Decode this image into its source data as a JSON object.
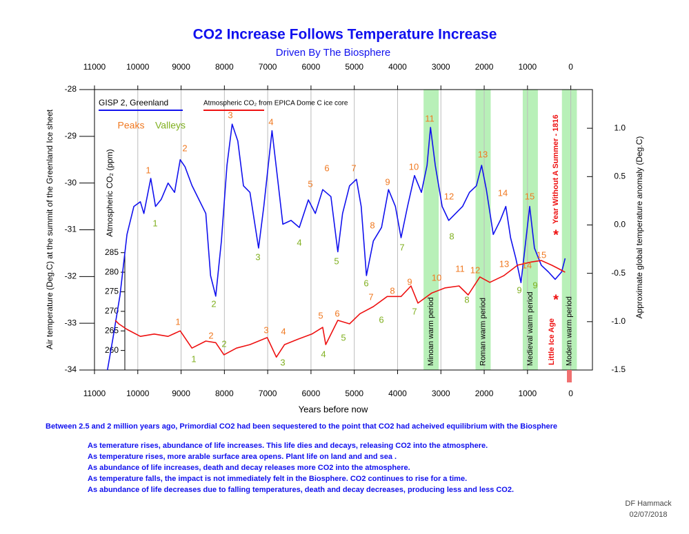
{
  "chart_data": {
    "type": "line",
    "title": "CO2 Increase Follows Temperature Increase",
    "subtitle": "Driven By The Biosphere",
    "xlabel": "Years before now",
    "ylabel": "Air temperature (Deg.C) at the summit of the Greenland Ice sheet",
    "y2label": "Approximate global temperature anomaly (Deg.C)",
    "y3label": "Atmospheric CO₂ (ppm)",
    "xlim": [
      11000,
      -500
    ],
    "xticks": [
      11000,
      10000,
      9000,
      8000,
      7000,
      6000,
      5000,
      4000,
      3000,
      2000,
      1000,
      0
    ],
    "ylim": [
      -34,
      -28
    ],
    "yticks": [
      -28,
      -29,
      -30,
      -31,
      -32,
      -33,
      -34
    ],
    "y2lim": [
      -1.5,
      1.4
    ],
    "y2ticks": [
      {
        "value": 1,
        "label": "1.0"
      },
      0.5,
      {
        "value": 0,
        "label": "0.0"
      },
      -0.5,
      {
        "value": -1,
        "label": "-1.0"
      },
      -1.5
    ],
    "y3lim": [
      255,
      326.7
    ],
    "y3ticks": [
      285,
      280,
      275,
      270,
      265,
      260
    ],
    "grid": true,
    "series": [
      {
        "name": "GISP 2, Greenland",
        "color": "#1010ee",
        "x": [
          10700,
          10570,
          10410,
          10250,
          10090,
          9940,
          9860,
          9700,
          9590,
          9460,
          9300,
          9150,
          9020,
          8910,
          8750,
          8590,
          8430,
          8320,
          8200,
          8070,
          7940,
          7820,
          7690,
          7560,
          7410,
          7210,
          7090,
          6900,
          6770,
          6650,
          6460,
          6270,
          6060,
          5900,
          5730,
          5540,
          5380,
          5270,
          5110,
          4950,
          4840,
          4720,
          4560,
          4370,
          4210,
          4050,
          3920,
          3770,
          3610,
          3450,
          3320,
          3240,
          3130,
          2970,
          2820,
          2660,
          2500,
          2340,
          2180,
          2060,
          1950,
          1790,
          1630,
          1500,
          1390,
          1270,
          1150,
          1040,
          950,
          840,
          680,
          520,
          360,
          210,
          130
        ],
        "values": [
          -34.0,
          -33.3,
          -32.4,
          -31.1,
          -30.5,
          -30.4,
          -30.65,
          -29.9,
          -30.5,
          -30.35,
          -30.0,
          -30.2,
          -29.5,
          -29.65,
          -30.05,
          -30.35,
          -30.65,
          -31.98,
          -32.42,
          -31.24,
          -29.62,
          -28.74,
          -29.1,
          -30.06,
          -30.2,
          -31.39,
          -30.5,
          -28.88,
          -29.92,
          -30.88,
          -30.8,
          -30.95,
          -30.36,
          -30.65,
          -30.14,
          -30.29,
          -31.47,
          -30.65,
          -30.06,
          -29.92,
          -30.5,
          -31.98,
          -31.24,
          -30.95,
          -30.14,
          -30.5,
          -31.17,
          -30.5,
          -29.84,
          -30.2,
          -29.62,
          -28.81,
          -29.62,
          -30.5,
          -30.8,
          -30.65,
          -30.5,
          -30.2,
          -30.06,
          -29.62,
          -30.14,
          -31.1,
          -30.8,
          -30.5,
          -31.17,
          -31.61,
          -32.13,
          -31.24,
          -30.5,
          -31.39,
          -31.76,
          -31.9,
          -32.06,
          -31.9,
          -31.61
        ]
      },
      {
        "name": "Atmospheric CO₂ from EPICA Dome C ice core",
        "color": "#ee1010",
        "axis": "y3",
        "x": [
          10520,
          10440,
          10250,
          9940,
          9620,
          9300,
          9020,
          8750,
          8430,
          8200,
          8010,
          7720,
          7410,
          7010,
          6800,
          6610,
          6300,
          5980,
          5730,
          5660,
          5380,
          5110,
          4870,
          4560,
          4240,
          3920,
          3690,
          3530,
          3210,
          2900,
          2580,
          2370,
          2100,
          1870,
          1550,
          1230,
          920,
          680,
          440,
          280,
          130
        ],
        "values": [
          267.7,
          266.8,
          265.4,
          263.6,
          264.2,
          263.6,
          265.0,
          260.6,
          262.4,
          262.0,
          258.9,
          260.6,
          261.5,
          263.3,
          258.3,
          261.5,
          262.9,
          264.2,
          265.9,
          261.5,
          267.7,
          266.8,
          269.4,
          271.2,
          273.8,
          273.8,
          276.5,
          272.1,
          274.7,
          276.0,
          276.5,
          274.2,
          278.8,
          277.4,
          279.1,
          281.8,
          282.6,
          283.0,
          281.8,
          280.9,
          280.0
        ]
      }
    ],
    "peaks_label": "Peaks",
    "valleys_label": "Valleys",
    "peak_color": "#f07820",
    "valley_color": "#80b020",
    "annotations": {
      "temperature_peaks": [
        "1",
        "2",
        "3",
        "4",
        "5",
        "6",
        "7",
        "8",
        "9",
        "10",
        "11",
        "12",
        "13",
        "14",
        "15"
      ],
      "temperature_valleys": [
        "1",
        "2",
        "3",
        "4",
        "5",
        "6",
        "7",
        "8",
        "9"
      ],
      "co2_peaks": [
        "1",
        "2",
        "3",
        "4",
        "5",
        "6",
        "7",
        "8",
        "9",
        "10",
        "11",
        "12",
        "13",
        "14",
        "15"
      ],
      "co2_valleys": [
        "1",
        "2",
        "3",
        "4",
        "5",
        "6",
        "7",
        "8",
        "9"
      ]
    },
    "period_color": "#b8f0b8",
    "periods": [
      {
        "label": "Minoan warm period",
        "start": 3400,
        "end": 3050
      },
      {
        "label": "Roman warm period",
        "start": 2200,
        "end": 1850
      },
      {
        "label": "Medieval warm period",
        "start": 1110,
        "end": 760
      },
      {
        "label": "Modern warm period",
        "start": 205,
        "end": -140
      }
    ],
    "events": {
      "little_ice_age": "Little Ice Age",
      "year_without_summer": "Year Without A Summer - 1816",
      "marker": "*",
      "color": "#ee1010"
    }
  },
  "notes": {
    "intro": "Between 2.5 and 2 million years ago, Primordial CO2 had been sequestered to the point that CO2 had acheived equilibrium with the Biosphere",
    "lines": [
      "As temerature rises, abundance of life increases. This life dies and decays, releasing CO2 into the atmosphere.",
      "As temperature rises, more arable surface area opens. Plant life on land and and sea .",
      "As abundance of life increases, death and decay releases more CO2 into the atmosphere.",
      "As temperature falls, the impact is not immediately felt in the Biosphere. CO2 continues to rise for a time.",
      "As abundance of life decreases due to falling temperatures, death and decay decreases, producing less and less CO2."
    ]
  },
  "signature": {
    "author": "DF Hammack",
    "date": "02/07/2018"
  }
}
